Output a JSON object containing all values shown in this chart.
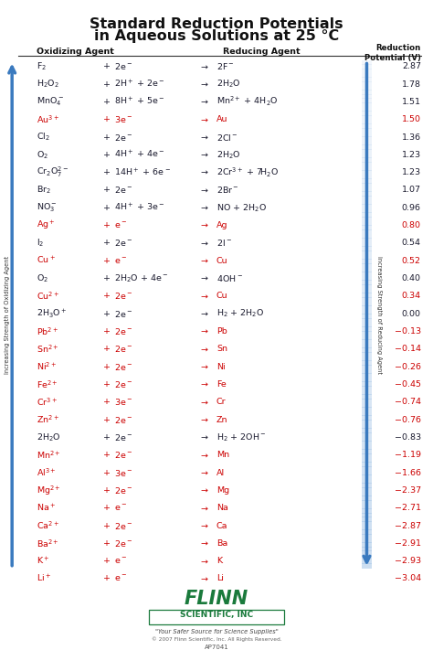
{
  "title_line1": "Standard Reduction Potentials",
  "title_line2": "in Aqueous Solutions at 25 °C",
  "col_headers": [
    "Oxidizing Agent",
    "Reducing Agent",
    "Reduction\nPotential (V)"
  ],
  "rows": [
    {
      "ox": "F$_2$",
      "ox_right": "2e$^-$",
      "red": "2F$^-$",
      "potential": "2.87",
      "highlight": false
    },
    {
      "ox": "H$_2$O$_2$",
      "ox_right": "2H$^+$ + 2e$^-$",
      "red": "2H$_2$O",
      "potential": "1.78",
      "highlight": false
    },
    {
      "ox": "MnO$_4^-$",
      "ox_right": "8H$^+$ + 5e$^-$",
      "red": "Mn$^{2+}$ + 4H$_2$O",
      "potential": "1.51",
      "highlight": false
    },
    {
      "ox": "Au$^{3+}$",
      "ox_right": "3e$^-$",
      "red": "Au",
      "potential": "1.50",
      "highlight": true
    },
    {
      "ox": "Cl$_2$",
      "ox_right": "2e$^-$",
      "red": "2Cl$^-$",
      "potential": "1.36",
      "highlight": false
    },
    {
      "ox": "O$_2$",
      "ox_right": "4H$^+$ + 4e$^-$",
      "red": "2H$_2$O",
      "potential": "1.23",
      "highlight": false
    },
    {
      "ox": "Cr$_2$O$_7^{2-}$",
      "ox_right": "14H$^+$ + 6e$^-$",
      "red": "2Cr$^{3+}$ + 7H$_2$O",
      "potential": "1.23",
      "highlight": false
    },
    {
      "ox": "Br$_2$",
      "ox_right": "2e$^-$",
      "red": "2Br$^-$",
      "potential": "1.07",
      "highlight": false
    },
    {
      "ox": "NO$_3^-$",
      "ox_right": "4H$^+$ + 3e$^-$",
      "red": "NO + 2H$_2$O",
      "potential": "0.96",
      "highlight": false
    },
    {
      "ox": "Ag$^+$",
      "ox_right": "e$^-$",
      "red": "Ag",
      "potential": "0.80",
      "highlight": true
    },
    {
      "ox": "I$_2$",
      "ox_right": "2e$^-$",
      "red": "2I$^-$",
      "potential": "0.54",
      "highlight": false
    },
    {
      "ox": "Cu$^+$",
      "ox_right": "e$^-$",
      "red": "Cu",
      "potential": "0.52",
      "highlight": true
    },
    {
      "ox": "O$_2$",
      "ox_right": "2H$_2$O + 4e$^-$",
      "red": "4OH$^-$",
      "potential": "0.40",
      "highlight": false
    },
    {
      "ox": "Cu$^{2+}$",
      "ox_right": "2e$^-$",
      "red": "Cu",
      "potential": "0.34",
      "highlight": true
    },
    {
      "ox": "2H$_3$O$^+$",
      "ox_right": "2e$^-$",
      "red": "H$_2$ + 2H$_2$O",
      "potential": "0.00",
      "highlight": false
    },
    {
      "ox": "Pb$^{2+}$",
      "ox_right": "2e$^-$",
      "red": "Pb",
      "potential": "−0.13",
      "highlight": true
    },
    {
      "ox": "Sn$^{2+}$",
      "ox_right": "2e$^-$",
      "red": "Sn",
      "potential": "−0.14",
      "highlight": true
    },
    {
      "ox": "Ni$^{2+}$",
      "ox_right": "2e$^-$",
      "red": "Ni",
      "potential": "−0.26",
      "highlight": true
    },
    {
      "ox": "Fe$^{2+}$",
      "ox_right": "2e$^-$",
      "red": "Fe",
      "potential": "−0.45",
      "highlight": true
    },
    {
      "ox": "Cr$^{3+}$",
      "ox_right": "3e$^-$",
      "red": "Cr",
      "potential": "−0.74",
      "highlight": true
    },
    {
      "ox": "Zn$^{2+}$",
      "ox_right": "2e$^-$",
      "red": "Zn",
      "potential": "−0.76",
      "highlight": true
    },
    {
      "ox": "2H$_2$O",
      "ox_right": "2e$^-$",
      "red": "H$_2$ + 2OH$^-$",
      "potential": "−0.83",
      "highlight": false
    },
    {
      "ox": "Mn$^{2+}$",
      "ox_right": "2e$^-$",
      "red": "Mn",
      "potential": "−1.19",
      "highlight": true
    },
    {
      "ox": "Al$^{3+}$",
      "ox_right": "3e$^-$",
      "red": "Al",
      "potential": "−1.66",
      "highlight": true
    },
    {
      "ox": "Mg$^{2+}$",
      "ox_right": "2e$^-$",
      "red": "Mg",
      "potential": "−2.37",
      "highlight": true
    },
    {
      "ox": "Na$^+$",
      "ox_right": "e$^-$",
      "red": "Na",
      "potential": "−2.71",
      "highlight": true
    },
    {
      "ox": "Ca$^{2+}$",
      "ox_right": "2e$^-$",
      "red": "Ca",
      "potential": "−2.87",
      "highlight": true
    },
    {
      "ox": "Ba$^{2+}$",
      "ox_right": "2e$^-$",
      "red": "Ba",
      "potential": "−2.91",
      "highlight": true
    },
    {
      "ox": "K$^+$",
      "ox_right": "e$^-$",
      "red": "K",
      "potential": "−2.93",
      "highlight": true
    },
    {
      "ox": "Li$^+$",
      "ox_right": "e$^-$",
      "red": "Li",
      "potential": "−3.04",
      "highlight": true
    }
  ],
  "highlight_color": "#cc0000",
  "normal_color": "#1a1a2e",
  "bg_color": "#ffffff",
  "arrow_blue": "#3a7abf",
  "arrow_blue_light": "#aac8e8",
  "flinn_green": "#1a7a3c",
  "flinn_name": "FLINN",
  "flinn_sub": "SCIENTIFIC, INC",
  "flinn_tagline": "\"Your Safer Source for Science Supplies\"",
  "flinn_copy": "© 2007 Flinn Scientific, Inc. All Rights Reserved.",
  "flinn_code": "AP7041"
}
